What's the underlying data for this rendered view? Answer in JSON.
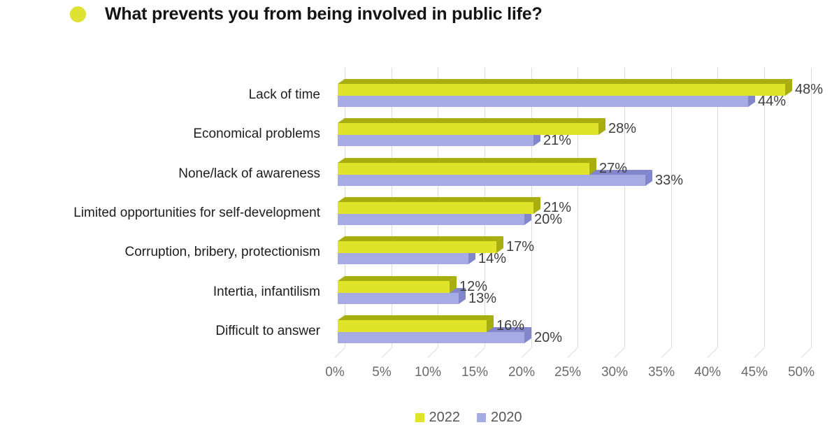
{
  "title": {
    "text": "What prevents you from being involved in public life?",
    "bullet_color": "#dfe133",
    "text_color": "#141414"
  },
  "chart_data": {
    "type": "bar",
    "orientation": "horizontal",
    "title": "What prevents you from being involved in public life?",
    "categories": [
      "Lack of time",
      "Economical problems",
      "None/lack of awareness",
      "Limited opportunities for self-development",
      "Corruption, bribery, protectionism",
      "Intertia, infantilism",
      "Difficult to answer"
    ],
    "series": [
      {
        "name": "2022",
        "color": "#dfe32a",
        "shade_color": "#a9ae10",
        "values": [
          48,
          28,
          27,
          21,
          17,
          12,
          16
        ]
      },
      {
        "name": "2020",
        "color": "#a6abe4",
        "shade_color": "#8287cb",
        "values": [
          44,
          21,
          33,
          20,
          14,
          13,
          20
        ]
      }
    ],
    "value_suffix": "%",
    "xlim": [
      0,
      50
    ],
    "x_tick_values": [
      0,
      5,
      10,
      15,
      20,
      25,
      30,
      35,
      40,
      45,
      50
    ],
    "x_tick_labels": [
      "0%",
      "5%",
      "10%",
      "15%",
      "20%",
      "25%",
      "30%",
      "35%",
      "40%",
      "45%",
      "50%"
    ],
    "grid": true,
    "legend_position": "bottom",
    "legend_labels": [
      "2022",
      "2020"
    ]
  },
  "style": {
    "gridline_color": "#dcdcdc",
    "value_label_color": "#3d3d3d",
    "tick_label_color": "#6a6a6a",
    "category_label_color": "#1d1d1d",
    "legend_text_color": "#57585a",
    "background": "#ffffff"
  }
}
